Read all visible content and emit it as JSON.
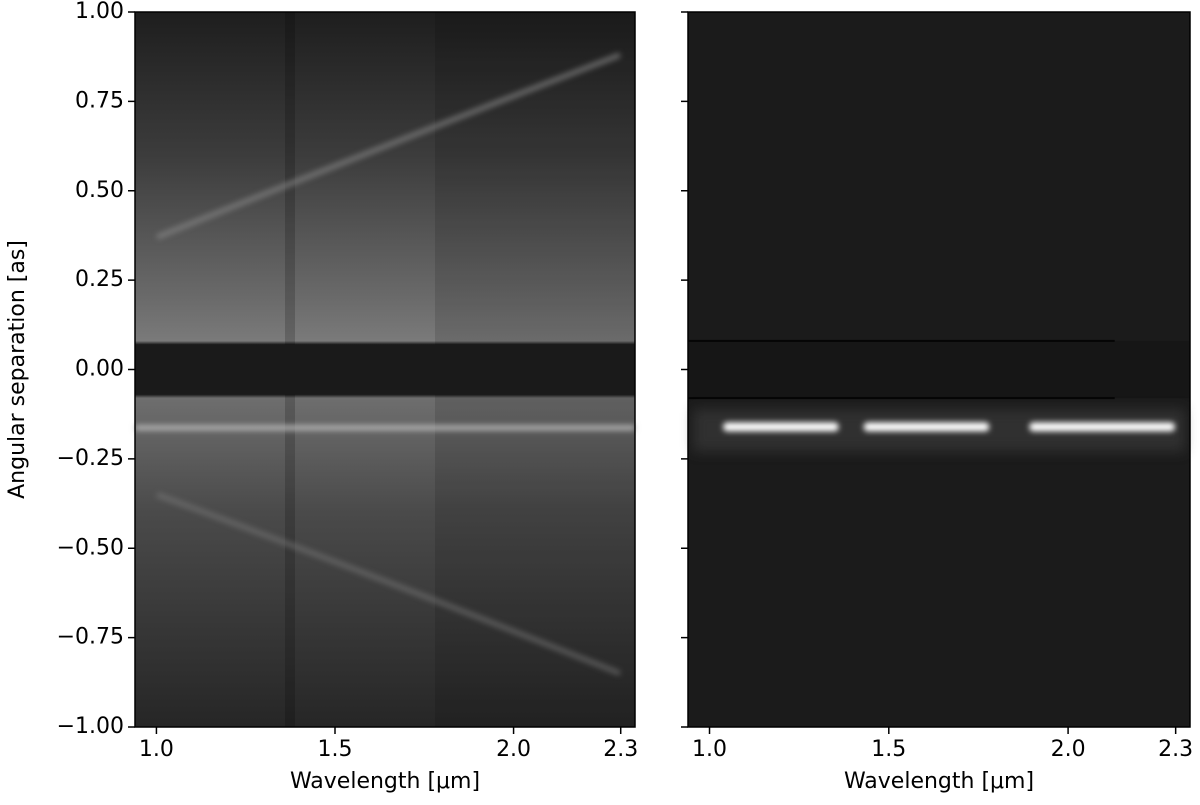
{
  "chart_data": [
    {
      "type": "image",
      "xlabel": "Wavelength [μm]",
      "ylabel": "Angular separation [as]",
      "xlim": [
        0.94,
        2.34
      ],
      "xticks": [
        {
          "value": 1,
          "label": "1.0"
        },
        1.5,
        {
          "value": 2,
          "label": "2.0"
        },
        2.3
      ],
      "ylim": [
        -1,
        1
      ],
      "yticks": [
        {
          "value": -1,
          "label": "−1.00"
        },
        {
          "value": -0.75,
          "label": "−0.75"
        },
        {
          "value": -0.5,
          "label": "−0.50"
        },
        {
          "value": -0.25,
          "label": "−0.25"
        },
        {
          "value": 0,
          "label": "0.00"
        },
        {
          "value": 0.25,
          "label": "0.25"
        },
        {
          "value": 0.5,
          "label": "0.50"
        },
        {
          "value": 0.75,
          "label": "0.75"
        },
        {
          "value": 1,
          "label": "1.00"
        }
      ],
      "ytick_labels": true,
      "colormap": "gray"
    },
    {
      "type": "image",
      "xlabel": "Wavelength [μm]",
      "xlim": [
        0.94,
        2.34
      ],
      "xticks": [
        {
          "value": 1,
          "label": "1.0"
        },
        1.5,
        {
          "value": 2,
          "label": "2.0"
        },
        2.3
      ],
      "ylim": [
        -1,
        1
      ],
      "yticks": [
        -1,
        -0.75,
        -0.5,
        -0.25,
        0,
        0.25,
        0.5,
        0.75,
        1
      ],
      "ytick_labels": false,
      "colormap": "gray"
    }
  ]
}
